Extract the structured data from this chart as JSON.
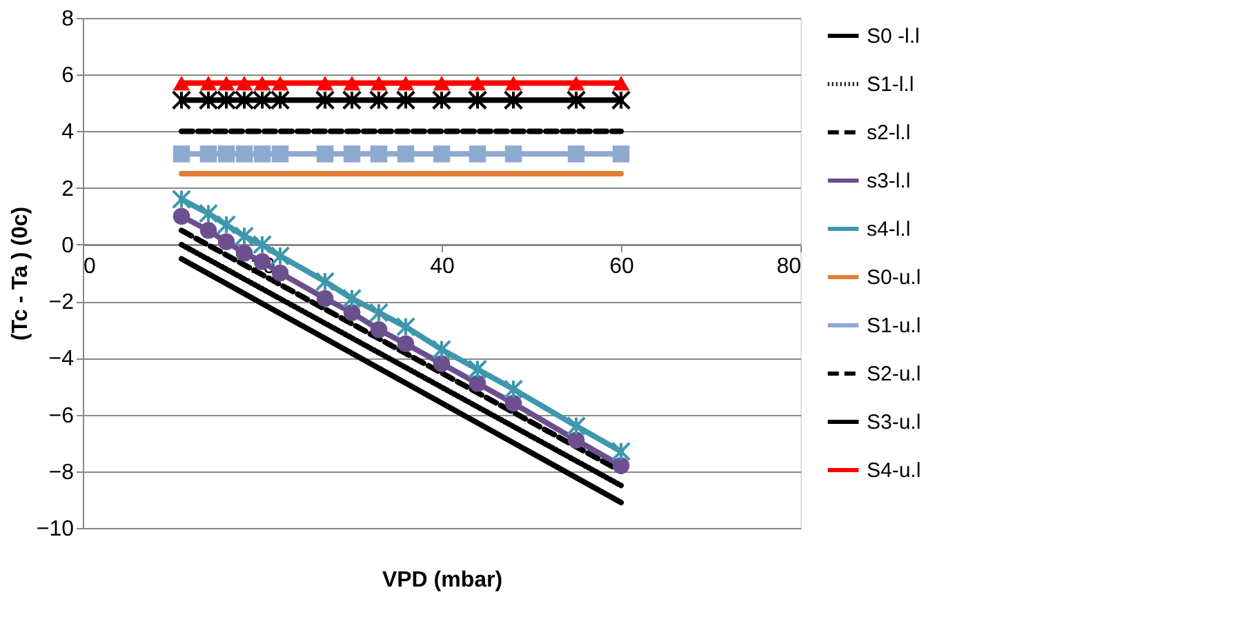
{
  "chart_data": {
    "type": "line",
    "xlabel": "VPD (mbar)",
    "ylabel": "(Tc - Ta ) (0c)",
    "xlim": [
      0,
      80
    ],
    "xticks": [
      0,
      20,
      40,
      60,
      80
    ],
    "ylim": [
      -10,
      8
    ],
    "yticks": [
      -10,
      -8,
      -6,
      -4,
      -2,
      0,
      2,
      4,
      6,
      8
    ],
    "grid": "y",
    "legend": "right",
    "series": [
      {
        "name": "S0 -l.l",
        "color": "#000000",
        "line_style": "solid",
        "marker": "none",
        "x": [
          11,
          60
        ],
        "values": [
          -0.5,
          -9.1
        ]
      },
      {
        "name": "S1-l.l",
        "color": "#000000",
        "line_style": "dotted",
        "marker": "none",
        "x": [
          11,
          60
        ],
        "values": [
          0.0,
          -8.5
        ]
      },
      {
        "name": "s2-l.l",
        "color": "#000000",
        "line_style": "dashed",
        "marker": "none",
        "x": [
          11,
          60
        ],
        "values": [
          0.5,
          -8.0
        ]
      },
      {
        "name": "s3-l.l",
        "color": "#6b4f8f",
        "line_style": "solid",
        "marker": "circle",
        "x": [
          11,
          14,
          16,
          18,
          20,
          22,
          27,
          30,
          33,
          36,
          40,
          44,
          48,
          55,
          60
        ],
        "values": [
          1.0,
          0.5,
          0.1,
          -0.3,
          -0.6,
          -1.0,
          -1.9,
          -2.4,
          -3.0,
          -3.5,
          -4.2,
          -4.9,
          -5.6,
          -6.9,
          -7.8
        ]
      },
      {
        "name": "s4-l.l",
        "color": "#3e97ad",
        "line_style": "solid",
        "marker": "cross",
        "x": [
          11,
          14,
          16,
          18,
          20,
          22,
          27,
          30,
          33,
          36,
          40,
          44,
          48,
          55,
          60
        ],
        "values": [
          1.6,
          1.1,
          0.7,
          0.3,
          0.0,
          -0.4,
          -1.3,
          -1.9,
          -2.4,
          -2.9,
          -3.7,
          -4.4,
          -5.1,
          -6.4,
          -7.3
        ]
      },
      {
        "name": "S0-u.l",
        "color": "#e07f35",
        "line_style": "solid",
        "marker": "none",
        "x": [
          11,
          60
        ],
        "values": [
          2.5,
          2.5
        ]
      },
      {
        "name": "S1-u.l",
        "color": "#8ea9d0",
        "line_style": "solid",
        "marker": "square",
        "x": [
          11,
          14,
          16,
          18,
          20,
          22,
          27,
          30,
          33,
          36,
          40,
          44,
          48,
          55,
          60
        ],
        "values": [
          3.2,
          3.2,
          3.2,
          3.2,
          3.2,
          3.2,
          3.2,
          3.2,
          3.2,
          3.2,
          3.2,
          3.2,
          3.2,
          3.2,
          3.2
        ]
      },
      {
        "name": "S2-u.l",
        "color": "#000000",
        "line_style": "dashed",
        "marker": "none",
        "x": [
          11,
          60
        ],
        "values": [
          4.0,
          4.0
        ]
      },
      {
        "name": "S3-u.l",
        "color": "#000000",
        "line_style": "solid",
        "marker": "cross",
        "x": [
          11,
          14,
          16,
          18,
          20,
          22,
          27,
          30,
          33,
          36,
          40,
          44,
          48,
          55,
          60
        ],
        "values": [
          5.1,
          5.1,
          5.1,
          5.1,
          5.1,
          5.1,
          5.1,
          5.1,
          5.1,
          5.1,
          5.1,
          5.1,
          5.1,
          5.1,
          5.1
        ]
      },
      {
        "name": "S4-u.l",
        "color": "#ff0000",
        "line_style": "solid",
        "marker": "triangle",
        "x": [
          11,
          14,
          16,
          18,
          20,
          22,
          27,
          30,
          33,
          36,
          40,
          44,
          48,
          55,
          60
        ],
        "values": [
          5.7,
          5.7,
          5.7,
          5.7,
          5.7,
          5.7,
          5.7,
          5.7,
          5.7,
          5.7,
          5.7,
          5.7,
          5.7,
          5.7,
          5.7
        ]
      }
    ]
  }
}
